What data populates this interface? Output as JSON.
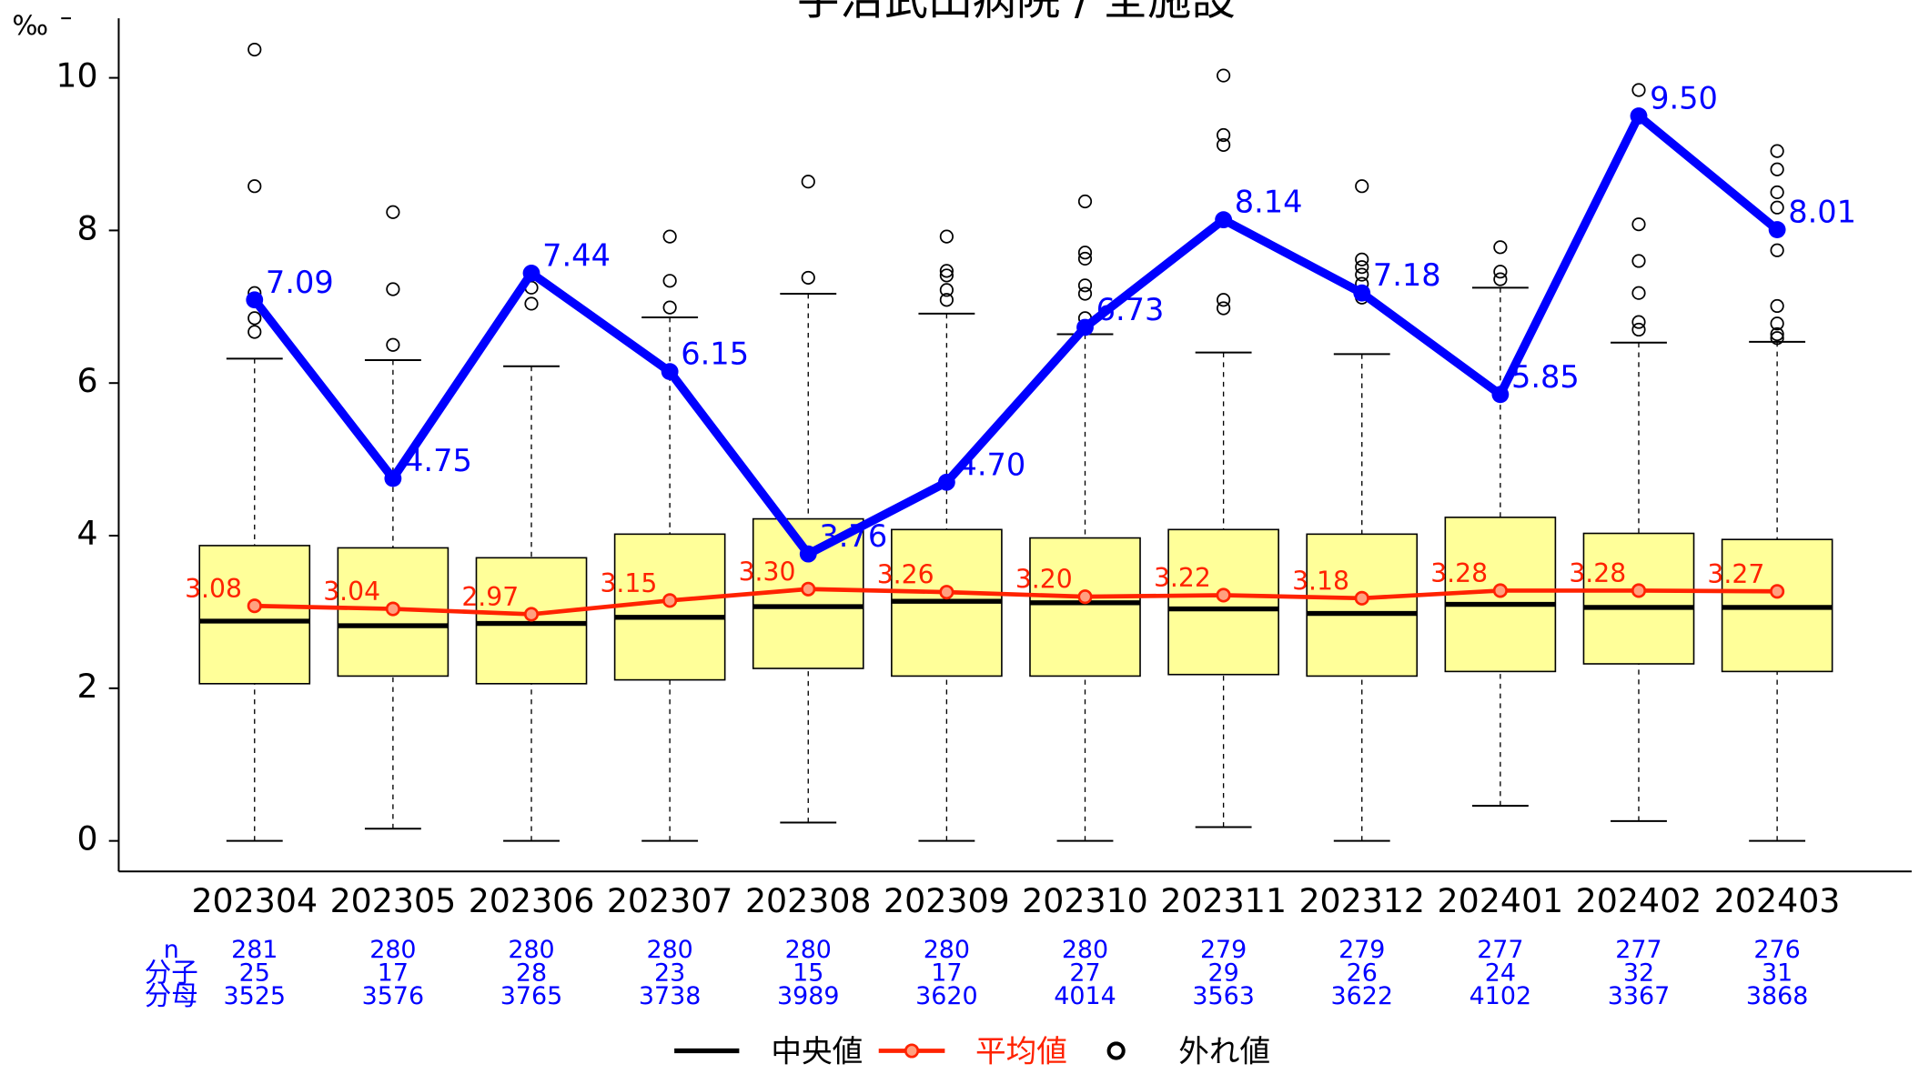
{
  "chart_data": {
    "type": "box",
    "title": "宇治武田病院 / 全施設",
    "ylabel": "‰",
    "ylim": [
      -0.4,
      10.78
    ],
    "yticks": [
      0,
      2,
      4,
      6,
      8,
      10
    ],
    "categories": [
      "202304",
      "202305",
      "202306",
      "202307",
      "202308",
      "202309",
      "202310",
      "202311",
      "202312",
      "202401",
      "202402",
      "202403"
    ],
    "box_stats": {
      "name": "中央値",
      "outlier_name": "外れ値",
      "color": "#ffff99",
      "q1": [
        2.06,
        2.16,
        2.06,
        2.11,
        2.26,
        2.16,
        2.16,
        2.18,
        2.16,
        2.22,
        2.32,
        2.22
      ],
      "median": [
        2.88,
        2.82,
        2.85,
        2.93,
        3.07,
        3.14,
        3.12,
        3.04,
        2.98,
        3.1,
        3.06,
        3.06
      ],
      "q3": [
        3.87,
        3.84,
        3.71,
        4.02,
        4.22,
        4.08,
        3.97,
        4.08,
        4.02,
        4.24,
        4.03,
        3.95
      ],
      "whisker_low": [
        0,
        0.16,
        0,
        0,
        0.24,
        0,
        0,
        0.18,
        0,
        0.46,
        0.26,
        0
      ],
      "whisker_high": [
        6.32,
        6.3,
        6.22,
        6.86,
        7.17,
        6.91,
        6.64,
        6.4,
        6.38,
        7.25,
        6.53,
        6.54
      ],
      "outliers": [
        [
          10.37,
          8.58,
          7.18,
          6.85,
          6.67
        ],
        [
          8.24,
          7.23,
          6.5
        ],
        [
          7.25,
          7.04
        ],
        [
          7.92,
          7.34,
          6.99
        ],
        [
          8.64,
          7.38
        ],
        [
          7.92,
          7.47,
          7.41,
          7.22,
          7.09
        ],
        [
          8.38,
          7.71,
          7.63,
          7.28,
          7.17,
          6.85
        ],
        [
          10.03,
          9.25,
          9.12,
          7.09,
          6.98
        ],
        [
          8.58,
          7.62,
          7.52,
          7.42,
          7.3,
          7.12
        ],
        [
          7.78,
          7.46,
          7.36
        ],
        [
          9.84,
          8.08,
          7.6,
          7.18,
          6.8,
          6.7
        ],
        [
          9.04,
          8.8,
          8.5,
          8.3,
          7.74,
          7.01,
          6.78,
          6.64,
          6.59
        ]
      ]
    },
    "series": [
      {
        "name": "平均値",
        "color": "#ff2200",
        "values": [
          3.08,
          3.04,
          2.97,
          3.15,
          3.3,
          3.26,
          3.2,
          3.22,
          3.18,
          3.28,
          3.28,
          3.27
        ],
        "value_labels": [
          "3.08",
          "3.04",
          "2.97",
          "3.15",
          "3.30",
          "3.26",
          "3.20",
          "3.22",
          "3.18",
          "3.28",
          "3.28",
          "3.27"
        ]
      },
      {
        "color": "#0000ff",
        "values": [
          7.09,
          4.75,
          7.44,
          6.15,
          3.76,
          4.7,
          6.73,
          8.14,
          7.18,
          5.85,
          9.5,
          8.01
        ],
        "value_labels": [
          "7.09",
          "4.75",
          "7.44",
          "6.15",
          "3.76",
          "4.70",
          "6.73",
          "8.14",
          "7.18",
          "5.85",
          "9.50",
          "8.01"
        ]
      }
    ],
    "table": {
      "row_labels": [
        "n",
        "分子",
        "分母"
      ],
      "rows": [
        [
          281,
          280,
          280,
          280,
          280,
          280,
          280,
          279,
          279,
          277,
          277,
          276
        ],
        [
          25,
          17,
          28,
          23,
          15,
          17,
          27,
          29,
          26,
          24,
          32,
          31
        ],
        [
          3525,
          3576,
          3765,
          3738,
          3989,
          3620,
          4014,
          3563,
          3622,
          4102,
          3367,
          3868
        ]
      ]
    }
  }
}
